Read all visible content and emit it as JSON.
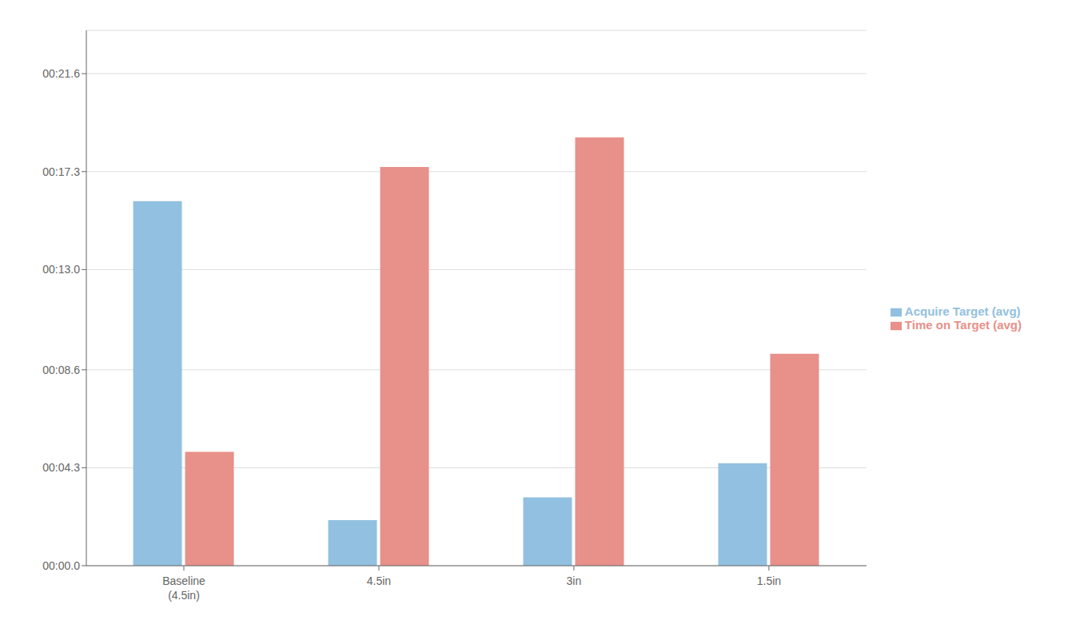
{
  "chart_data": {
    "type": "bar",
    "categories": [
      "Baseline\n(4.5in)",
      "4.5in",
      "3in",
      "1.5in"
    ],
    "series": [
      {
        "name": "Acquire Target (avg)",
        "color": "#92C0E0",
        "values": [
          16.0,
          2.0,
          3.0,
          4.5
        ]
      },
      {
        "name": "Time on Target (avg)",
        "color": "#E8908A",
        "values": [
          5.0,
          17.5,
          18.8,
          9.3
        ]
      }
    ],
    "ylim": [
      0,
      23.5
    ],
    "yticks": [
      {
        "value": 0,
        "label": "00:00.0"
      },
      {
        "value": 4.3,
        "label": "00:04.3"
      },
      {
        "value": 8.6,
        "label": "00:08.6"
      },
      {
        "value": 13.0,
        "label": "00:13.0"
      },
      {
        "value": 17.3,
        "label": "00:17.3"
      },
      {
        "value": 21.6,
        "label": "00:21.6"
      }
    ],
    "grid": true,
    "legend": "right"
  }
}
